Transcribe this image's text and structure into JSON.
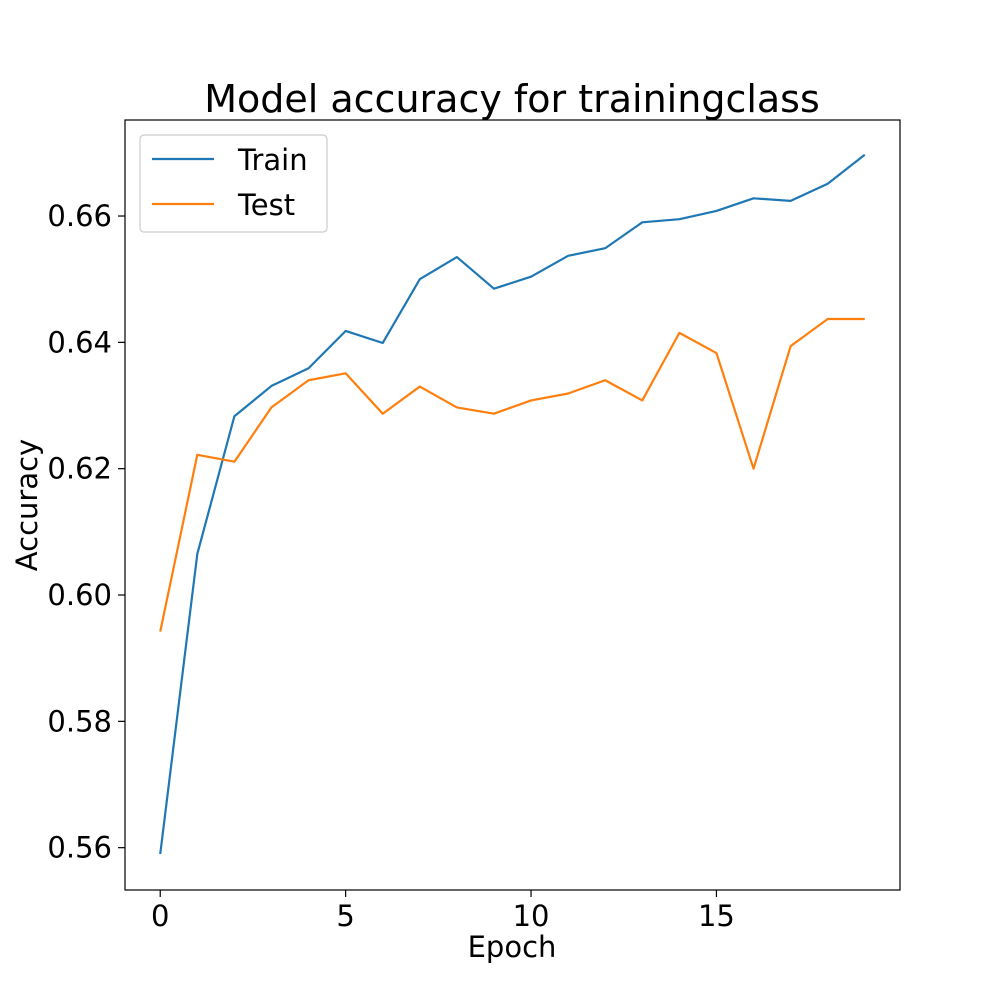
{
  "chart_data": {
    "type": "line",
    "title": "Model accuracy for trainingclass",
    "xlabel": "Epoch",
    "ylabel": "Accuracy",
    "xlim": [
      -0.95,
      19.95
    ],
    "ylim": [
      0.5533,
      0.6752
    ],
    "xticks": [
      0,
      5,
      10,
      15
    ],
    "xtick_labels": [
      "0",
      "5",
      "10",
      "15"
    ],
    "yticks": [
      0.56,
      0.58,
      0.6,
      0.62,
      0.64,
      0.66
    ],
    "ytick_labels": [
      "0.56",
      "0.58",
      "0.60",
      "0.62",
      "0.64",
      "0.66"
    ],
    "grid": false,
    "legend_position": "top-left",
    "x": [
      0,
      1,
      2,
      3,
      4,
      5,
      6,
      7,
      8,
      9,
      10,
      11,
      12,
      13,
      14,
      15,
      16,
      17,
      18,
      19
    ],
    "series": [
      {
        "name": "Train",
        "color": "#1f77b4",
        "values": [
          0.559,
          0.6065,
          0.6283,
          0.6331,
          0.6359,
          0.6418,
          0.6399,
          0.65,
          0.6535,
          0.6485,
          0.6504,
          0.6537,
          0.6549,
          0.659,
          0.6595,
          0.6608,
          0.6628,
          0.6624,
          0.6651,
          0.6697
        ]
      },
      {
        "name": "Test",
        "color": "#ff7f0e",
        "values": [
          0.5942,
          0.6222,
          0.6211,
          0.6297,
          0.634,
          0.6351,
          0.6287,
          0.633,
          0.6297,
          0.6287,
          0.6308,
          0.6319,
          0.634,
          0.6308,
          0.6415,
          0.6383,
          0.62,
          0.6394,
          0.6437,
          0.6437
        ]
      }
    ]
  }
}
